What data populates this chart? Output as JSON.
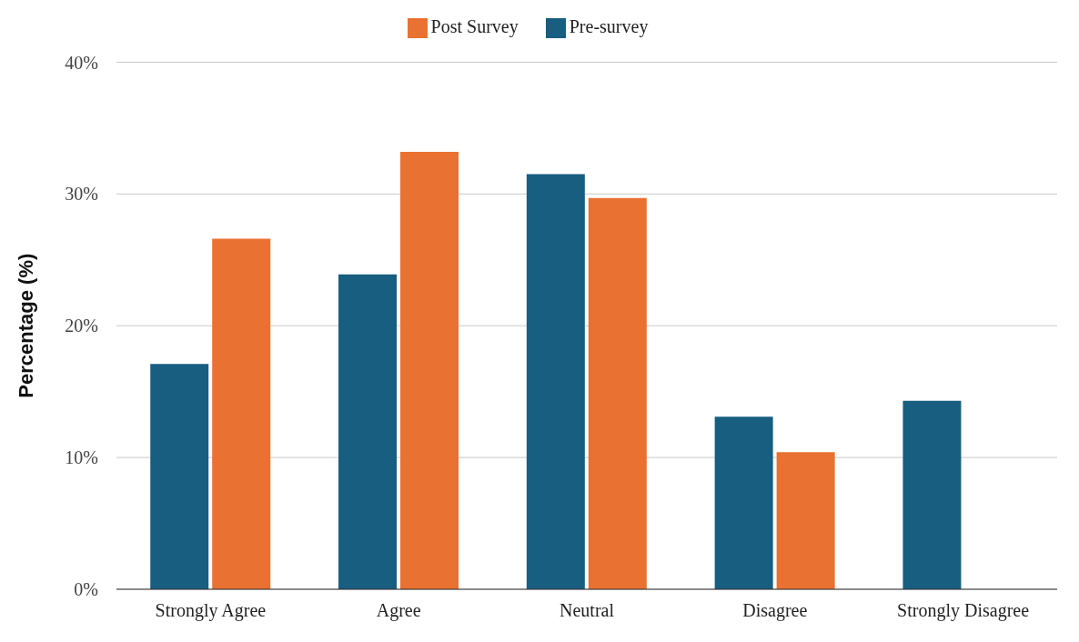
{
  "chart_data": {
    "type": "bar",
    "ylabel": "Percentage (%)",
    "categories": [
      "Strongly Agree",
      "Agree",
      "Neutral",
      "Disagree",
      "Strongly Disagree"
    ],
    "series": [
      {
        "name": "Pre-survey",
        "color": "#175e80",
        "values": [
          17.1,
          23.9,
          31.5,
          13.1,
          14.3
        ]
      },
      {
        "name": "Post Survey",
        "color": "#e97132",
        "values": [
          26.6,
          33.2,
          29.7,
          10.4,
          0
        ]
      }
    ],
    "ylim": [
      0,
      40
    ],
    "yticks": [
      {
        "value": 0,
        "label": "0%"
      },
      {
        "value": 10,
        "label": "10%"
      },
      {
        "value": 20,
        "label": "20%"
      },
      {
        "value": 30,
        "label": "30%"
      },
      {
        "value": 40,
        "label": "40%"
      }
    ],
    "grid": "y",
    "legend": "top"
  }
}
